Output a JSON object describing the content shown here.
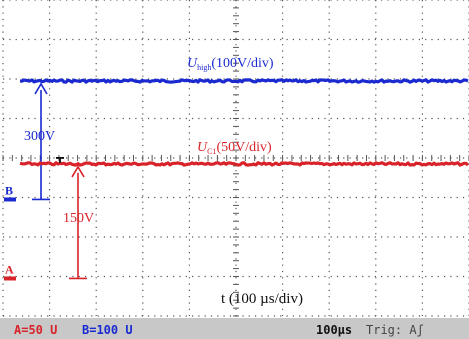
{
  "chart_data": {
    "type": "line",
    "x_label": "t (100 µs/div)",
    "x_divisions": 10,
    "y_divisions": 8,
    "series": [
      {
        "name": "U_high(100V/div)",
        "name_main": "U",
        "name_sub": "high",
        "name_scale": "(100V/div)",
        "color": "#1a2ad0",
        "level_div": 5.95
      },
      {
        "name": "U_C1(50V/div)",
        "name_main": "U",
        "name_sub": "C1",
        "name_scale": "(50V/div)",
        "color": "#d8232a",
        "level_div": 3.85
      }
    ],
    "annotations": [
      {
        "label": "300V",
        "color": "#1a2ad0"
      },
      {
        "label": "150V",
        "color": "#d8232a"
      }
    ],
    "channel_markers": [
      {
        "label": "B",
        "color": "#1a2ad0",
        "level_div": 2.95
      },
      {
        "label": "A",
        "color": "#d8232a",
        "level_div": 0.95
      }
    ]
  },
  "status_bar": {
    "ch_a": "A=50 U",
    "ch_b": "B=100 U",
    "timebase": "100µs",
    "trigger": "Trig: Aʃ"
  },
  "colors": {
    "grid": "#555555",
    "status_bg": "#c8c8c8",
    "ch_a": "#d8232a",
    "ch_b": "#1a2ad0"
  }
}
